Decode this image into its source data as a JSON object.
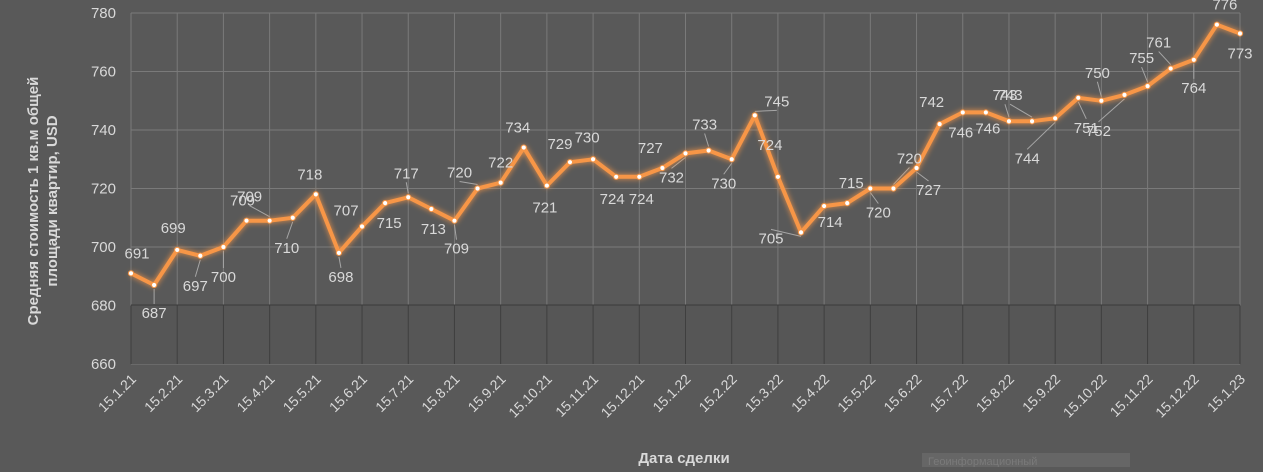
{
  "chart_data": {
    "type": "line",
    "xlabel": "Дата сделки",
    "ylabel": "Средняя стоимость 1 кв.м общей площади квартир, USD",
    "ylabel_lines": [
      "Средняя стоимость 1 кв.м общей",
      "площади квартир, USD"
    ],
    "ylim": [
      660,
      780
    ],
    "yticks": [
      660,
      680,
      700,
      720,
      740,
      760,
      780
    ],
    "xticks": [
      "15.1.21",
      "15.2.21",
      "15.3.21",
      "15.4.21",
      "15.5.21",
      "15.6.21",
      "15.7.21",
      "15.8.21",
      "15.9.21",
      "15.10.21",
      "15.11.21",
      "15.12.21",
      "15.1.22",
      "15.2.22",
      "15.3.22",
      "15.4.22",
      "15.5.22",
      "15.6.22",
      "15.7.22",
      "15.8.22",
      "15.9.22",
      "15.10.22",
      "15.11.22",
      "15.12.22",
      "15.1.23"
    ],
    "grid": true,
    "series": [
      {
        "values": [
          691,
          687,
          699,
          697,
          700,
          709,
          709,
          710,
          718,
          698,
          707,
          715,
          717,
          713,
          709,
          720,
          722,
          734,
          721,
          729,
          730,
          724,
          724,
          727,
          732,
          733,
          730,
          745,
          724,
          705,
          714,
          715,
          720,
          720,
          727,
          742,
          746,
          746,
          743,
          743,
          744,
          751,
          750,
          752,
          755,
          761,
          764,
          776,
          773
        ],
        "color": "#f79646"
      }
    ],
    "watermark": "Геоинформационный"
  }
}
